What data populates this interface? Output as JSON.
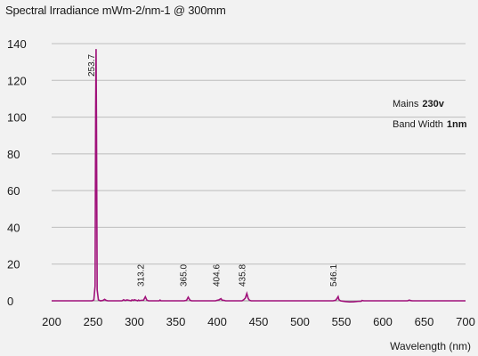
{
  "chart_data": {
    "type": "line",
    "title": "Spectral Irradiance mWm-2/nm-1 @ 300mm",
    "xlabel": "Wavelength (nm)",
    "ylabel": "",
    "xlim": [
      200,
      700
    ],
    "ylim": [
      0,
      140
    ],
    "xticks": [
      "200",
      "250",
      "300",
      "350",
      "400",
      "450",
      "500",
      "550",
      "600",
      "650",
      "700"
    ],
    "yticks": [
      "0",
      "20",
      "40",
      "60",
      "80",
      "100",
      "120",
      "140"
    ],
    "grid": "horizontal",
    "line_color": "#a0117a",
    "peak_labels": [
      "253.7",
      "313.2",
      "365.0",
      "404.6",
      "435.8",
      "546.1"
    ],
    "series": [
      {
        "x": [
          200,
          249,
          251,
          252.5,
          253.2,
          253.7,
          254.2,
          255,
          256.5,
          259,
          262,
          264,
          266,
          268,
          285,
          287,
          289,
          291,
          296,
          297,
          299,
          300,
          304,
          305,
          306,
          309,
          311,
          313.2,
          315,
          317,
          330,
          331,
          332,
          334,
          340,
          360,
          363,
          365,
          367,
          369,
          380,
          398,
          400,
          402,
          404.6,
          406,
          408,
          410,
          430,
          432,
          434,
          435.8,
          437.5,
          439,
          441,
          450,
          500,
          540,
          543,
          544,
          545,
          546.1,
          547,
          548,
          549,
          552,
          555,
          560,
          565,
          570,
          574,
          575,
          577,
          580,
          590,
          600,
          610,
          620,
          630,
          632,
          634,
          636,
          650,
          700
        ],
        "y": [
          0,
          0,
          0.5,
          8,
          105,
          137,
          95,
          6,
          0.5,
          0,
          0.2,
          0.8,
          0.2,
          0,
          0,
          0.6,
          0.1,
          0.5,
          0,
          0.5,
          0.2,
          0.6,
          0,
          0.4,
          0.1,
          0.3,
          0.3,
          2.2,
          0.4,
          0,
          0,
          0.4,
          0,
          0,
          0,
          0,
          0.3,
          2,
          0.4,
          0,
          0,
          0,
          0.3,
          0.5,
          1.2,
          0.3,
          0.3,
          0,
          0,
          0.6,
          1.5,
          4,
          1.2,
          0.3,
          0,
          0,
          0,
          0,
          0.3,
          0.8,
          1.5,
          2.3,
          0.7,
          0.3,
          0,
          -0.2,
          -0.4,
          -0.6,
          -0.5,
          -0.3,
          -0.2,
          0.2,
          0,
          0,
          0,
          0,
          0,
          0,
          0,
          0.4,
          0.1,
          0,
          0,
          0
        ]
      }
    ]
  },
  "info": {
    "mains_label": "Mains",
    "mains_value": "230v",
    "bandwidth_label": "Band Width",
    "bandwidth_value": "1nm"
  }
}
